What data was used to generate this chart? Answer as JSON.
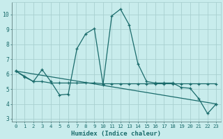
{
  "xlabel": "Humidex (Indice chaleur)",
  "bg_color": "#c8ecec",
  "grid_color": "#a8d0d0",
  "line_color": "#1a6b6b",
  "xlim": [
    -0.5,
    23.5
  ],
  "ylim": [
    2.8,
    10.8
  ],
  "yticks": [
    3,
    4,
    5,
    6,
    7,
    8,
    9,
    10
  ],
  "xticks": [
    0,
    1,
    2,
    3,
    4,
    5,
    6,
    7,
    8,
    9,
    10,
    11,
    12,
    13,
    14,
    15,
    16,
    17,
    18,
    19,
    20,
    21,
    22,
    23
  ],
  "line1_x": [
    0,
    1,
    2,
    3,
    4,
    5,
    6,
    7,
    8,
    9,
    10,
    11,
    12,
    13,
    14,
    15,
    16,
    17,
    18,
    19,
    20,
    21,
    22,
    23
  ],
  "line1_y": [
    6.2,
    5.8,
    5.5,
    6.3,
    5.5,
    4.6,
    4.65,
    7.7,
    8.7,
    9.05,
    5.3,
    9.9,
    10.35,
    9.3,
    6.7,
    5.5,
    5.4,
    5.4,
    5.4,
    5.1,
    5.05,
    4.35,
    3.35,
    4.0
  ],
  "line2_x": [
    0,
    1,
    2,
    3,
    4,
    5,
    6,
    7,
    8,
    9,
    10,
    11,
    12,
    13,
    14,
    15,
    16,
    17,
    18,
    19,
    20,
    21,
    22,
    23
  ],
  "line2_y": [
    6.2,
    5.85,
    5.5,
    5.5,
    5.4,
    5.4,
    5.4,
    5.4,
    5.4,
    5.4,
    5.35,
    5.35,
    5.35,
    5.35,
    5.35,
    5.35,
    5.35,
    5.35,
    5.35,
    5.35,
    5.35,
    5.35,
    5.35,
    5.35
  ],
  "line3_x": [
    0,
    23
  ],
  "line3_y": [
    6.2,
    4.0
  ]
}
